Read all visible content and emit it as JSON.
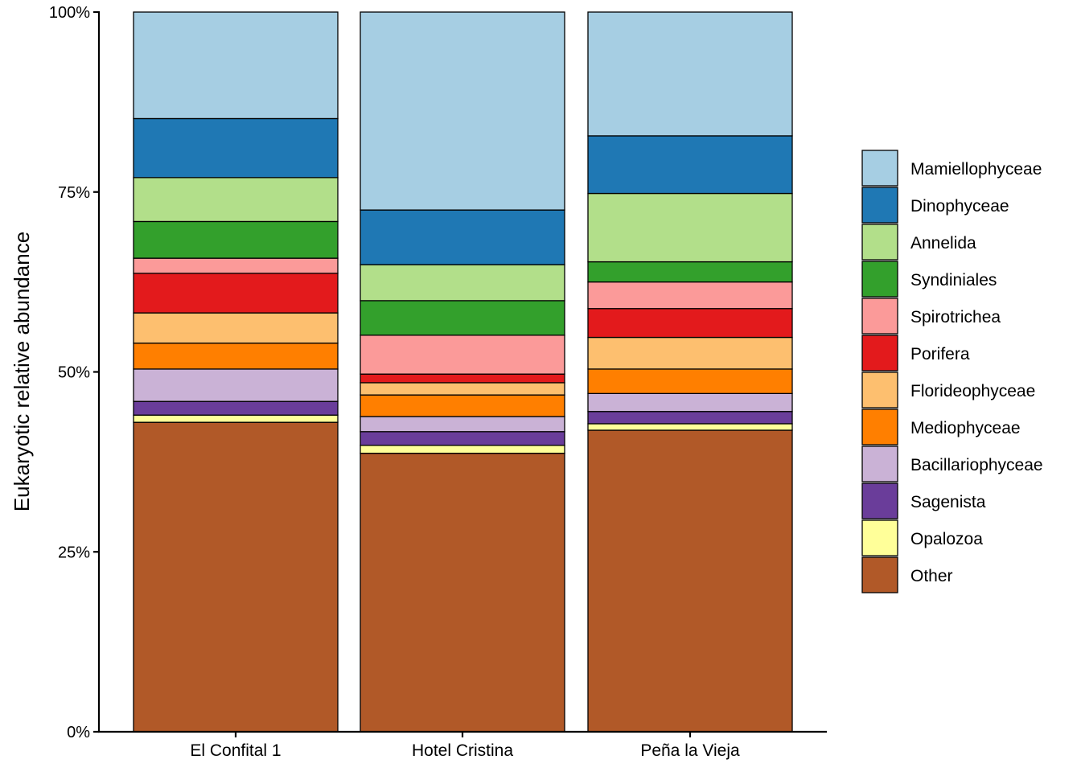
{
  "chart_data": {
    "type": "bar",
    "stacked": true,
    "title": "",
    "xlabel": "",
    "ylabel": "Eukaryotic relative abundance",
    "ylim": [
      0,
      1
    ],
    "yticks": [
      0,
      0.25,
      0.5,
      0.75,
      1.0
    ],
    "ytick_labels": [
      "0%",
      "25%",
      "50%",
      "75%",
      "100%"
    ],
    "categories": [
      "El Confital 1",
      "Hotel Cristina",
      "Peña la Vieja"
    ],
    "legend_position": "right",
    "series": [
      {
        "name": "Other",
        "color": "#B15928",
        "values": [
          0.43,
          0.387,
          0.419
        ]
      },
      {
        "name": "Opalozoa",
        "color": "#FFFF99",
        "values": [
          0.01,
          0.011,
          0.009
        ]
      },
      {
        "name": "Sagenista",
        "color": "#6A3D9A",
        "values": [
          0.019,
          0.019,
          0.017
        ]
      },
      {
        "name": "Bacillariophyceae",
        "color": "#CAB2D6",
        "values": [
          0.045,
          0.021,
          0.025
        ]
      },
      {
        "name": "Mediophyceae",
        "color": "#FF7F00",
        "values": [
          0.036,
          0.03,
          0.034
        ]
      },
      {
        "name": "Florideophyceae",
        "color": "#FDBF6F",
        "values": [
          0.042,
          0.017,
          0.044
        ]
      },
      {
        "name": "Porifera",
        "color": "#E31A1C",
        "values": [
          0.055,
          0.012,
          0.04
        ]
      },
      {
        "name": "Spirotrichea",
        "color": "#FB9A99",
        "values": [
          0.021,
          0.054,
          0.037
        ]
      },
      {
        "name": "Syndiniales",
        "color": "#33A02C",
        "values": [
          0.051,
          0.048,
          0.028
        ]
      },
      {
        "name": "Annelida",
        "color": "#B2DF8A",
        "values": [
          0.061,
          0.05,
          0.095
        ]
      },
      {
        "name": "Dinophyceae",
        "color": "#1F78B4",
        "values": [
          0.082,
          0.076,
          0.08
        ]
      },
      {
        "name": "Mamiellophyceae",
        "color": "#A6CEE3",
        "values": [
          0.148,
          0.275,
          0.172
        ]
      }
    ]
  }
}
